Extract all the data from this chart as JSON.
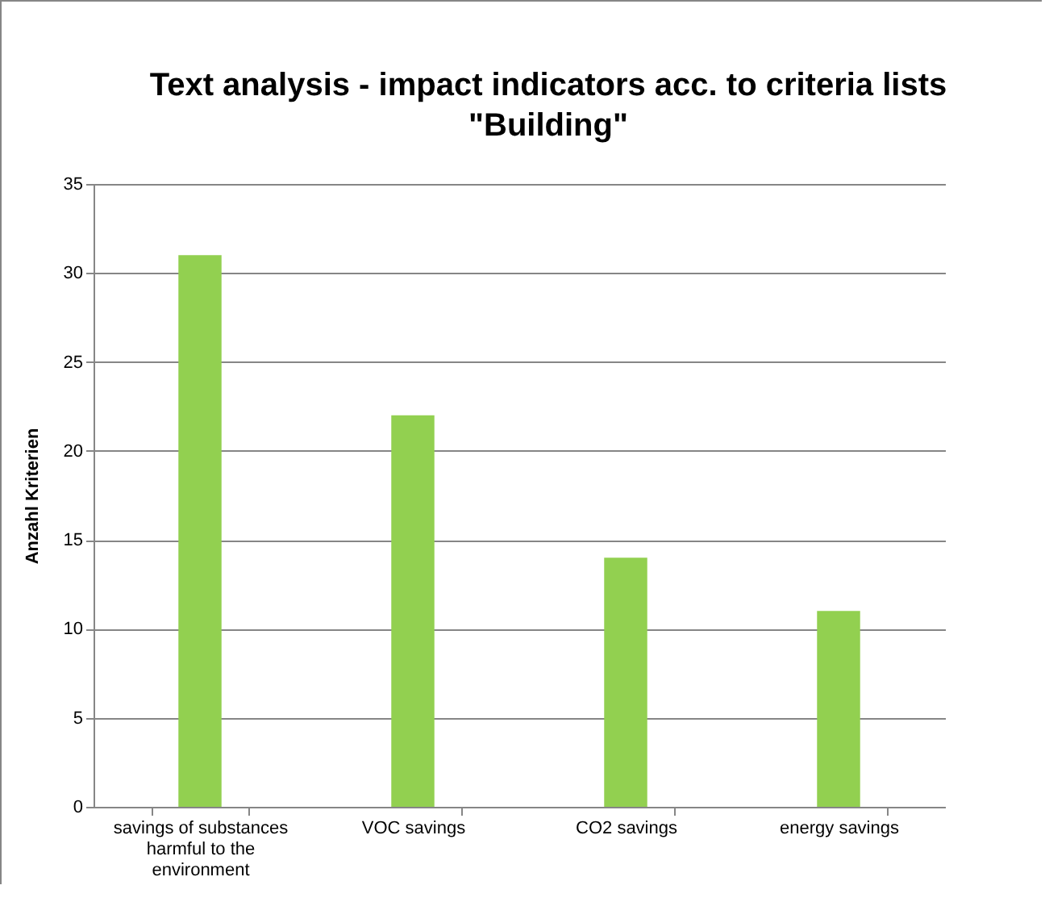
{
  "chart_data": {
    "type": "bar",
    "title": "Text analysis - impact indicators acc. to criteria lists \"Building\"",
    "ylabel": "Anzahl Kriterien",
    "categories": [
      "savings of substances harmful to the environment",
      "VOC savings",
      "CO2 savings",
      "energy savings"
    ],
    "values": [
      31,
      22,
      14,
      11
    ],
    "color": "#92d050",
    "ylim": [
      0,
      35
    ],
    "yticks": [
      0,
      5,
      10,
      15,
      20,
      25,
      30,
      35
    ],
    "grid": "y"
  }
}
